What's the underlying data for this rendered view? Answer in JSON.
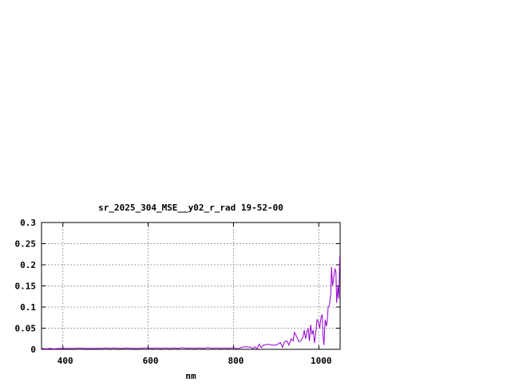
{
  "chart_data": {
    "type": "line",
    "title": "sr_2025_304_MSE__y02_r_rad 19-52-00",
    "xlabel": "nm",
    "ylabel": "",
    "xlim": [
      350,
      1050
    ],
    "ylim": [
      0,
      0.3
    ],
    "xticks": [
      400,
      600,
      800,
      1000
    ],
    "xtick_labels": [
      "400",
      "600",
      "800",
      "1000"
    ],
    "yticks": [
      0,
      0.05,
      0.1,
      0.15,
      0.2,
      0.25,
      0.3
    ],
    "ytick_labels": [
      "0",
      "0.05",
      "0.1",
      "0.15",
      "0.2",
      "0.25",
      "0.3"
    ],
    "grid": true,
    "line_color": "#9400d3",
    "series": [
      {
        "points": [
          [
            350,
            0.002
          ],
          [
            360,
            0.001
          ],
          [
            370,
            0.002
          ],
          [
            380,
            0.001
          ],
          [
            390,
            0.002
          ],
          [
            400,
            0.002
          ],
          [
            410,
            0.002
          ],
          [
            420,
            0.002
          ],
          [
            430,
            0.002
          ],
          [
            440,
            0.003
          ],
          [
            450,
            0.002
          ],
          [
            460,
            0.002
          ],
          [
            470,
            0.002
          ],
          [
            480,
            0.002
          ],
          [
            490,
            0.002
          ],
          [
            500,
            0.003
          ],
          [
            510,
            0.002
          ],
          [
            520,
            0.003
          ],
          [
            530,
            0.002
          ],
          [
            540,
            0.002
          ],
          [
            550,
            0.003
          ],
          [
            560,
            0.002
          ],
          [
            570,
            0.002
          ],
          [
            580,
            0.002
          ],
          [
            590,
            0.003
          ],
          [
            600,
            0.003
          ],
          [
            610,
            0.002
          ],
          [
            620,
            0.003
          ],
          [
            630,
            0.002
          ],
          [
            640,
            0.003
          ],
          [
            650,
            0.002
          ],
          [
            660,
            0.003
          ],
          [
            670,
            0.002
          ],
          [
            680,
            0.004
          ],
          [
            690,
            0.002
          ],
          [
            700,
            0.003
          ],
          [
            710,
            0.002
          ],
          [
            720,
            0.003
          ],
          [
            730,
            0.002
          ],
          [
            740,
            0.004
          ],
          [
            750,
            0.002
          ],
          [
            760,
            0.003
          ],
          [
            770,
            0.002
          ],
          [
            780,
            0.003
          ],
          [
            790,
            0.002
          ],
          [
            800,
            0.004
          ],
          [
            810,
            0.001
          ],
          [
            820,
            0.005
          ],
          [
            830,
            0.006
          ],
          [
            840,
            0.005
          ],
          [
            845,
            0.001
          ],
          [
            850,
            0.006
          ],
          [
            855,
            0.001
          ],
          [
            860,
            0.012
          ],
          [
            865,
            0.004
          ],
          [
            870,
            0.01
          ],
          [
            880,
            0.012
          ],
          [
            890,
            0.01
          ],
          [
            900,
            0.01
          ],
          [
            910,
            0.016
          ],
          [
            915,
            0.005
          ],
          [
            920,
            0.018
          ],
          [
            925,
            0.02
          ],
          [
            930,
            0.01
          ],
          [
            935,
            0.025
          ],
          [
            940,
            0.02
          ],
          [
            943,
            0.04
          ],
          [
            948,
            0.03
          ],
          [
            953,
            0.018
          ],
          [
            958,
            0.02
          ],
          [
            963,
            0.03
          ],
          [
            966,
            0.045
          ],
          [
            969,
            0.025
          ],
          [
            972,
            0.04
          ],
          [
            975,
            0.05
          ],
          [
            978,
            0.02
          ],
          [
            981,
            0.058
          ],
          [
            984,
            0.035
          ],
          [
            987,
            0.045
          ],
          [
            990,
            0.015
          ],
          [
            993,
            0.04
          ],
          [
            996,
            0.07
          ],
          [
            999,
            0.065
          ],
          [
            1002,
            0.05
          ],
          [
            1005,
            0.075
          ],
          [
            1008,
            0.082
          ],
          [
            1010,
            0.03
          ],
          [
            1012,
            0.01
          ],
          [
            1015,
            0.07
          ],
          [
            1018,
            0.055
          ],
          [
            1020,
            0.072
          ],
          [
            1022,
            0.1
          ],
          [
            1025,
            0.105
          ],
          [
            1028,
            0.13
          ],
          [
            1030,
            0.195
          ],
          [
            1032,
            0.15
          ],
          [
            1035,
            0.17
          ],
          [
            1038,
            0.19
          ],
          [
            1040,
            0.185
          ],
          [
            1042,
            0.11
          ],
          [
            1045,
            0.15
          ],
          [
            1047,
            0.12
          ],
          [
            1049,
            0.22
          ]
        ]
      }
    ]
  }
}
